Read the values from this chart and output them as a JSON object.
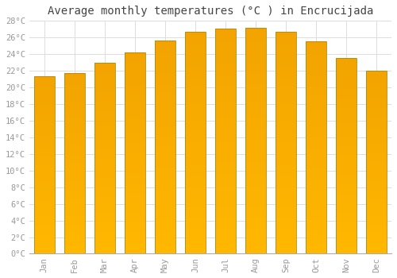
{
  "title": "Average monthly temperatures (°C ) in Encrucijada",
  "months": [
    "Jan",
    "Feb",
    "Mar",
    "Apr",
    "May",
    "Jun",
    "Jul",
    "Aug",
    "Sep",
    "Oct",
    "Nov",
    "Dec"
  ],
  "temperatures": [
    21.3,
    21.7,
    23.0,
    24.2,
    25.6,
    26.7,
    27.1,
    27.2,
    26.7,
    25.5,
    23.5,
    22.0
  ],
  "bar_color_top": "#F5A800",
  "bar_color_bottom": "#FFD070",
  "bar_edge_color": "#B8860B",
  "background_color": "#FFFFFF",
  "grid_color": "#DDDDDD",
  "ylim": [
    0,
    28
  ],
  "ytick_step": 2,
  "title_fontsize": 10,
  "tick_fontsize": 7.5,
  "tick_color": "#999999",
  "font_family": "monospace"
}
